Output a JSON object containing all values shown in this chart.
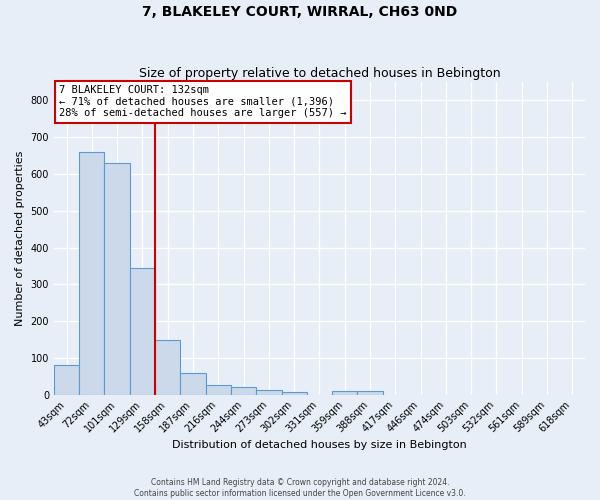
{
  "title": "7, BLAKELEY COURT, WIRRAL, CH63 0ND",
  "subtitle": "Size of property relative to detached houses in Bebington",
  "xlabel": "Distribution of detached houses by size in Bebington",
  "ylabel": "Number of detached properties",
  "bar_labels": [
    "43sqm",
    "72sqm",
    "101sqm",
    "129sqm",
    "158sqm",
    "187sqm",
    "216sqm",
    "244sqm",
    "273sqm",
    "302sqm",
    "331sqm",
    "359sqm",
    "388sqm",
    "417sqm",
    "446sqm",
    "474sqm",
    "503sqm",
    "532sqm",
    "561sqm",
    "589sqm",
    "618sqm"
  ],
  "bar_values": [
    82,
    660,
    630,
    345,
    148,
    60,
    25,
    20,
    12,
    8,
    0,
    10,
    10,
    0,
    0,
    0,
    0,
    0,
    0,
    0,
    0
  ],
  "bar_color": "#ccd9ea",
  "bar_edgecolor": "#5b9bd5",
  "property_line_x": 3.5,
  "property_line_color": "#cc0000",
  "annotation_text": "7 BLAKELEY COURT: 132sqm\n← 71% of detached houses are smaller (1,396)\n28% of semi-detached houses are larger (557) →",
  "annotation_box_color": "#ffffff",
  "annotation_box_edgecolor": "#cc0000",
  "ylim": [
    0,
    850
  ],
  "yticks": [
    0,
    100,
    200,
    300,
    400,
    500,
    600,
    700,
    800
  ],
  "footer_text": "Contains HM Land Registry data © Crown copyright and database right 2024.\nContains public sector information licensed under the Open Government Licence v3.0.",
  "background_color": "#e8eef7",
  "grid_color": "#ffffff",
  "title_fontsize": 10,
  "subtitle_fontsize": 9,
  "ylabel_fontsize": 8,
  "xlabel_fontsize": 8,
  "tick_fontsize": 7
}
